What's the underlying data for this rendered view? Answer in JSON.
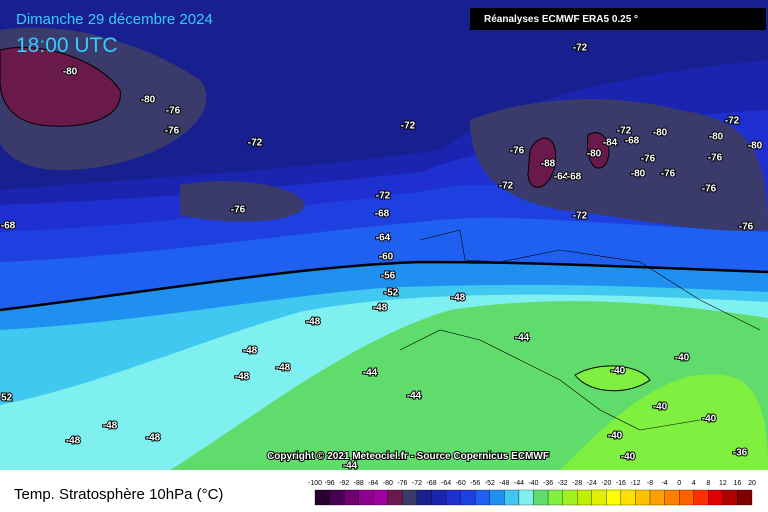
{
  "header": {
    "date": "Dimanche 29 décembre 2024",
    "time": "18:00 UTC",
    "source": "Réanalyses ECMWF ERA5 0.25 °"
  },
  "map": {
    "contour_labels": [
      "-80",
      "-80",
      "-76",
      "-76",
      "-72",
      "-72",
      "-72",
      "-76",
      "-68",
      "-72",
      "-68",
      "-64",
      "-60",
      "-56",
      "-52",
      "-48",
      "-48",
      "-48",
      "-48",
      "-48",
      "-48",
      "-52",
      "-48",
      "-48",
      "-48",
      "-44",
      "-44",
      "-44",
      "-44",
      "-40",
      "-40",
      "-40",
      "-40",
      "-40",
      "-40",
      "-36",
      "-76",
      "-88",
      "-72",
      "-64",
      "-68",
      "-72",
      "-84",
      "-80",
      "-72",
      "-68",
      "-80",
      "-76",
      "-80",
      "-76",
      "-72",
      "-80",
      "-80",
      "-76",
      "-76",
      "-76"
    ]
  },
  "copyright": "Copyright © 2021 Meteociel.fr - Source Copernicus ECMWF",
  "legend": {
    "title": "Temp. Stratosphère 10hPa (°C)",
    "labels": [
      "-100",
      "-96",
      "-92",
      "-88",
      "-84",
      "-80",
      "-76",
      "-72",
      "-68",
      "-64",
      "-60",
      "-56",
      "-52",
      "-48",
      "-44",
      "-40",
      "-36",
      "-32",
      "-28",
      "-24",
      "-20",
      "-16",
      "-12",
      "-8",
      "-4",
      "0",
      "4",
      "8",
      "12",
      "16",
      "20"
    ],
    "colors": [
      "#2a0030",
      "#4a0050",
      "#700070",
      "#900090",
      "#a000a0",
      "#6a1a4a",
      "#3b3b6b",
      "#182090",
      "#1a24b0",
      "#2030d0",
      "#1e40e0",
      "#2060f0",
      "#2090f0",
      "#40c8f0",
      "#7ff0f0",
      "#5fdc6c",
      "#80f040",
      "#a0f020",
      "#c0f000",
      "#e0f000",
      "#ffff00",
      "#ffe000",
      "#ffc000",
      "#ffa000",
      "#ff8000",
      "#ff6000",
      "#ff3000",
      "#e00000",
      "#b00000",
      "#800000"
    ]
  }
}
